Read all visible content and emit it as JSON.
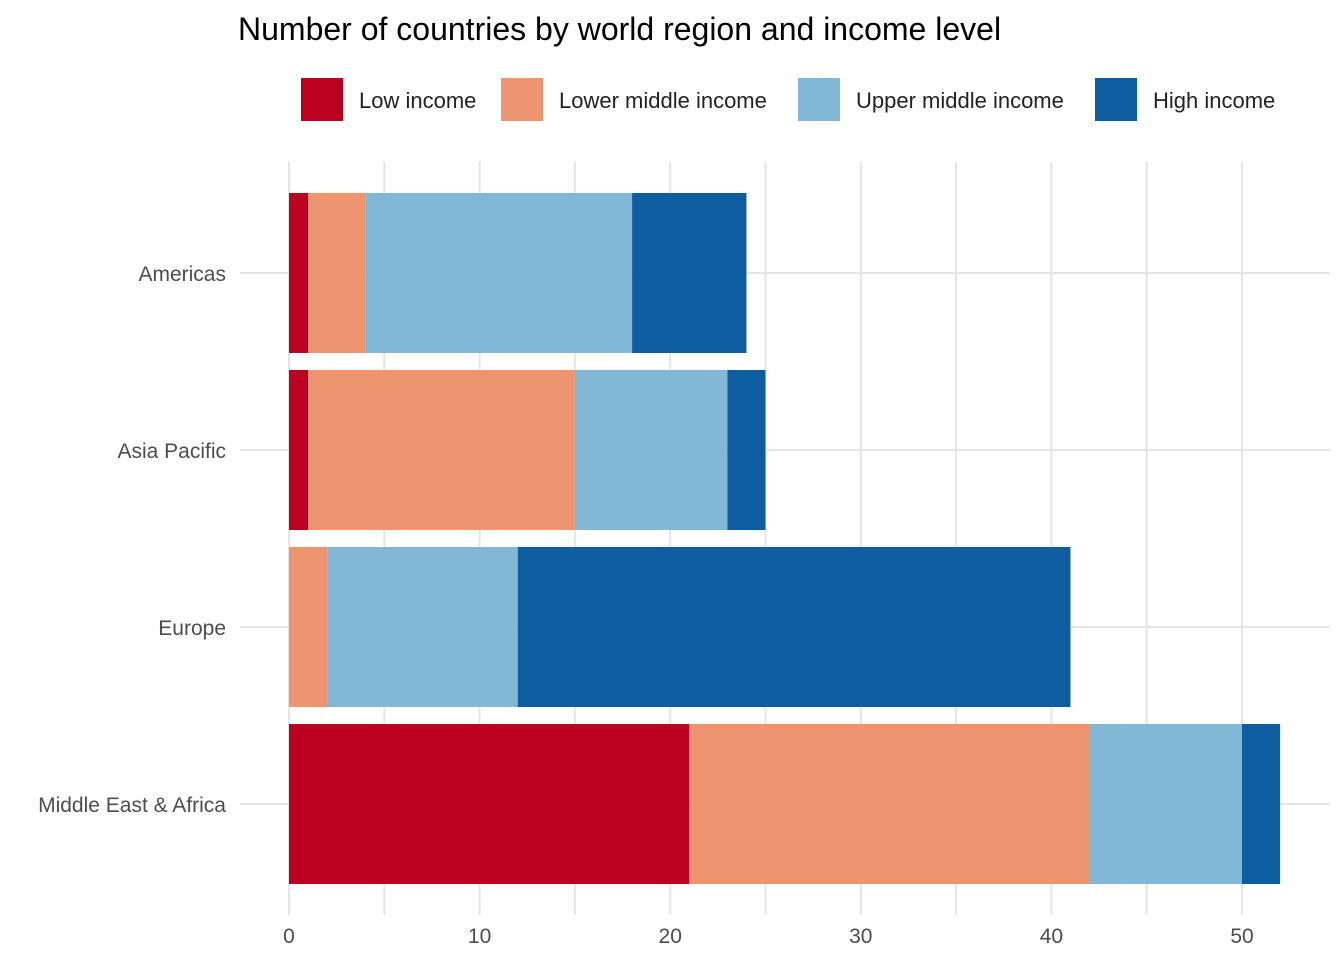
{
  "chart_data": {
    "type": "bar",
    "orientation": "horizontal",
    "stacked": true,
    "title": "Number of countries by world region and income level",
    "xlabel": "",
    "ylabel": "",
    "xlim": [
      0,
      52
    ],
    "x_ticks": [
      0,
      10,
      20,
      30,
      40,
      50
    ],
    "grid": true,
    "legend_position": "top",
    "categories": [
      "Americas",
      "Asia Pacific",
      "Europe",
      "Middle East & Africa"
    ],
    "series": [
      {
        "name": "Low income",
        "color": "#bb0021",
        "values": [
          1,
          1,
          0,
          21
        ]
      },
      {
        "name": "Lower middle income",
        "color": "#ef9471",
        "values": [
          3,
          14,
          2,
          21
        ]
      },
      {
        "name": "Upper middle income",
        "color": "#82b7d6",
        "values": [
          14,
          8,
          10,
          8
        ]
      },
      {
        "name": "High income",
        "color": "#0e5da1",
        "values": [
          6,
          2,
          29,
          2
        ]
      }
    ]
  }
}
